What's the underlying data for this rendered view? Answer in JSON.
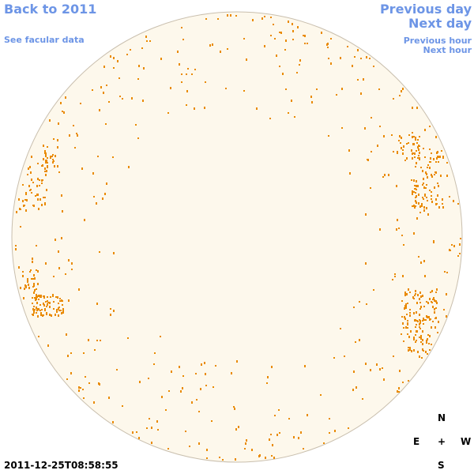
{
  "nav": {
    "back": "Back to 2011",
    "facular": "See facular data",
    "previous_day": "Previous day",
    "next_day": "Next day",
    "previous_hour": "Previous hour",
    "next_hour": "Next hour"
  },
  "timestamp": "2011-12-25T08:58:55",
  "compass": {
    "north": "N",
    "east": "E",
    "center": "+",
    "west": "W",
    "south": "S"
  }
}
